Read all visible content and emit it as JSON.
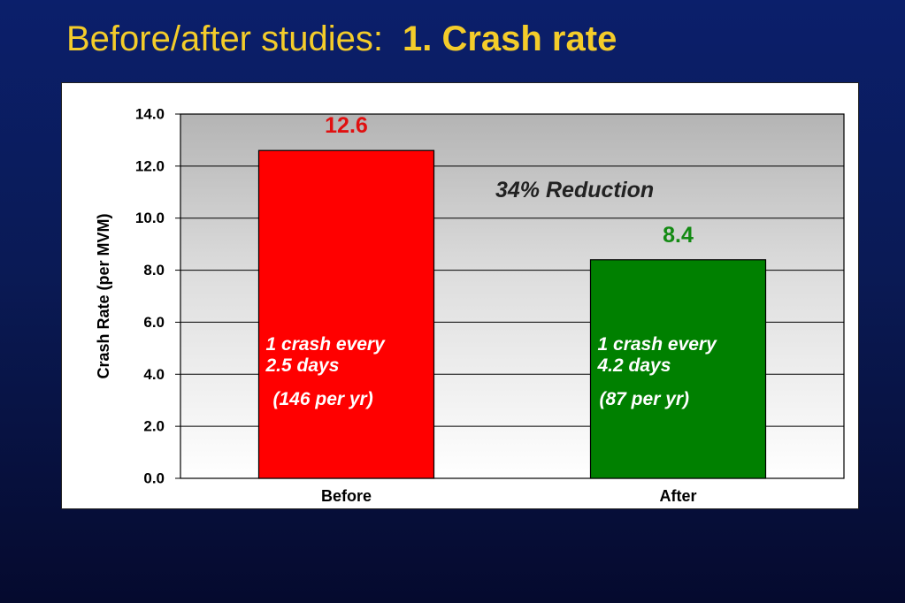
{
  "slide": {
    "title_regular": "Before/after studies:",
    "title_bold": "1. Crash rate"
  },
  "colors": {
    "background": "#0a1a55",
    "title": "#f4cc2a",
    "before_bar": "#ff0000",
    "after_bar": "#008000",
    "before_value": "#e01010",
    "after_value": "#138a13"
  },
  "chart_data": {
    "type": "bar",
    "categories": [
      "Before",
      "After"
    ],
    "values": [
      12.6,
      8.4
    ],
    "value_labels": [
      "12.6",
      "8.4"
    ],
    "ylabel": "Crash Rate (per MVM)",
    "xlabel": "",
    "ylim": [
      0,
      14
    ],
    "yticks": [
      "0.0",
      "2.0",
      "4.0",
      "6.0",
      "8.0",
      "10.0",
      "12.0",
      "14.0"
    ],
    "grid": true,
    "annotation": "34% Reduction",
    "bar_notes": [
      {
        "line1": "1 crash every",
        "line2": "2.5 days",
        "line3": "(146 per  yr)"
      },
      {
        "line1": "1 crash every",
        "line2": "4.2 days",
        "line3": "(87 per  yr)"
      }
    ]
  }
}
